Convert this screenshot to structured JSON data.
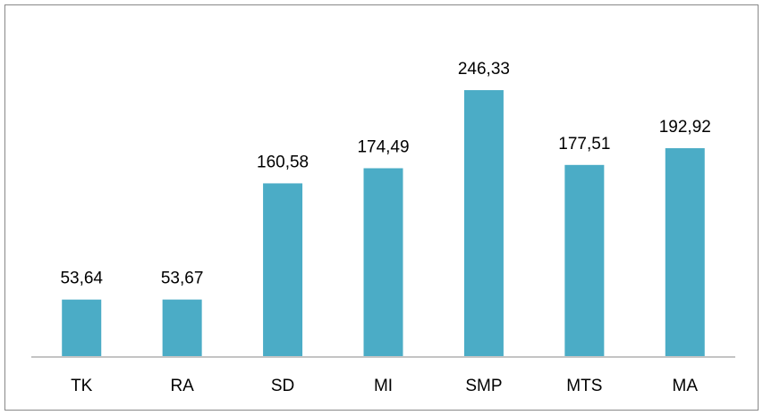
{
  "chart_data": {
    "type": "bar",
    "categories": [
      "TK",
      "RA",
      "SD",
      "MI",
      "SMP",
      "MTS",
      "MA"
    ],
    "values": [
      53.64,
      53.67,
      160.58,
      174.49,
      246.33,
      177.51,
      192.92
    ],
    "value_labels": [
      "53,64",
      "53,67",
      "160,58",
      "174,49",
      "246,33",
      "177,51",
      "192,92"
    ],
    "color": "#4bacc6",
    "ylim": [
      0,
      280
    ]
  }
}
